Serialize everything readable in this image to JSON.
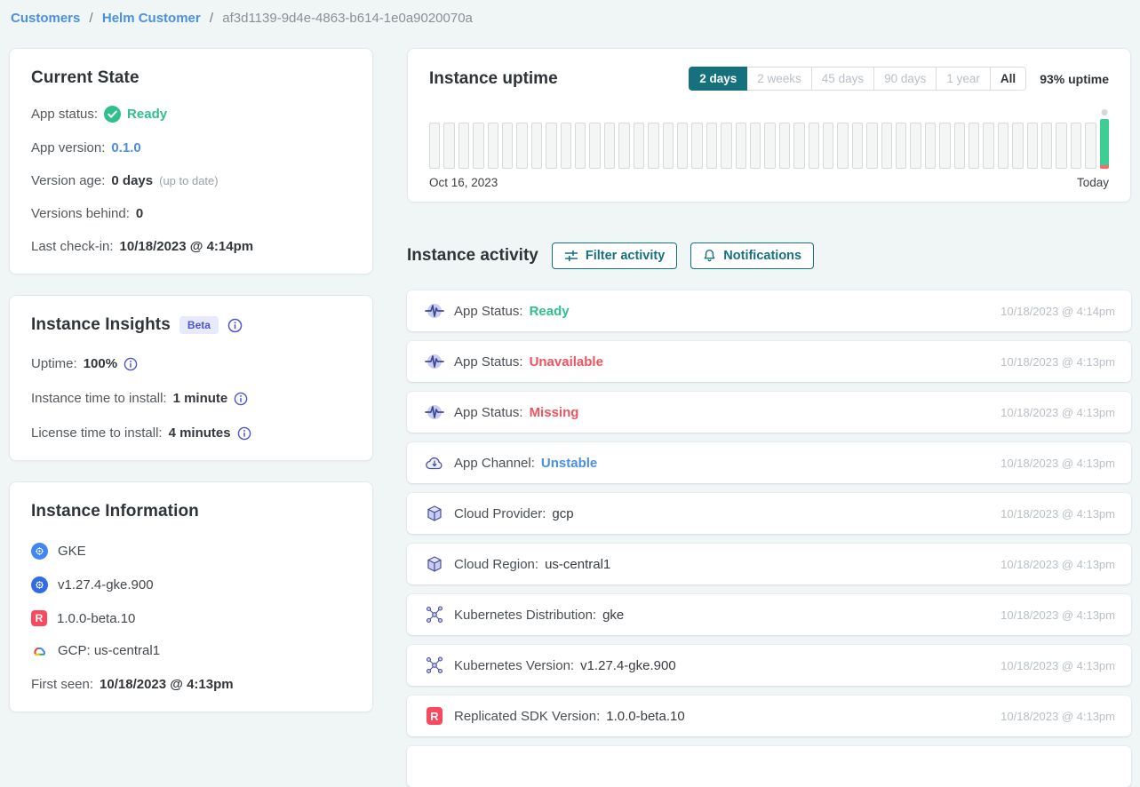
{
  "breadcrumb": {
    "links": [
      "Customers",
      "Helm Customer"
    ],
    "separator": "/",
    "current": "af3d1139-9d4e-4863-b614-1e0a9020070a"
  },
  "current_state": {
    "title": "Current State",
    "app_status": {
      "label": "App status:",
      "value": "Ready"
    },
    "app_version": {
      "label": "App version:",
      "value": "0.1.0"
    },
    "version_age": {
      "label": "Version age:",
      "value": "0 days",
      "note": "(up to date)"
    },
    "versions_behind": {
      "label": "Versions behind:",
      "value": "0"
    },
    "last_checkin": {
      "label": "Last check-in:",
      "value": "10/18/2023 @ 4:14pm"
    }
  },
  "instance_insights": {
    "title": "Instance Insights",
    "badge": "Beta",
    "uptime": {
      "label": "Uptime:",
      "value": "100%"
    },
    "instance_time_to_install": {
      "label": "Instance time to install:",
      "value": "1 minute"
    },
    "license_time_to_install": {
      "label": "License time to install:",
      "value": "4 minutes"
    }
  },
  "instance_information": {
    "title": "Instance Information",
    "rows": [
      {
        "icon": "gke-icon",
        "text": "GKE"
      },
      {
        "icon": "kubernetes-icon",
        "text": "v1.27.4-gke.900"
      },
      {
        "icon": "replicated-icon",
        "text": "1.0.0-beta.10"
      },
      {
        "icon": "gcp-icon",
        "text": "GCP: us-central1"
      }
    ],
    "first_seen": {
      "label": "First seen:",
      "value": "10/18/2023 @ 4:13pm"
    }
  },
  "uptime_card": {
    "title": "Instance uptime",
    "ranges": [
      {
        "label": "2 days",
        "selected": true,
        "muted": false
      },
      {
        "label": "2 weeks",
        "selected": false,
        "muted": true
      },
      {
        "label": "45 days",
        "selected": false,
        "muted": true
      },
      {
        "label": "90 days",
        "selected": false,
        "muted": true
      },
      {
        "label": "1 year",
        "selected": false,
        "muted": true
      },
      {
        "label": "All",
        "selected": false,
        "muted": false
      }
    ],
    "uptime_summary": "93% uptime"
  },
  "chart_data": {
    "type": "bar",
    "title": "Instance uptime",
    "x_start_label": "Oct 16, 2023",
    "x_end_label": "Today",
    "uptime_pct": 93,
    "no_data_bars": 46,
    "final_bar": {
      "up_pct": 92,
      "down_pct": 8
    },
    "legend": "none",
    "colors": {
      "no_data_fill": "#f4f5f5",
      "no_data_border": "#d7d9da",
      "up": "#3ecd92",
      "down": "#f56a6a"
    }
  },
  "activity": {
    "title": "Instance activity",
    "filter_button": "Filter activity",
    "notifications_button": "Notifications",
    "rows": [
      {
        "icon": "pulse-icon",
        "label": "App Status:",
        "value": "Ready",
        "value_style": "success",
        "timestamp": "10/18/2023 @ 4:14pm"
      },
      {
        "icon": "pulse-icon",
        "label": "App Status:",
        "value": "Unavailable",
        "value_style": "danger",
        "timestamp": "10/18/2023 @ 4:13pm"
      },
      {
        "icon": "pulse-icon",
        "label": "App Status:",
        "value": "Missing",
        "value_style": "danger",
        "timestamp": "10/18/2023 @ 4:13pm"
      },
      {
        "icon": "cloud-download-icon",
        "label": "App Channel:",
        "value": "Unstable",
        "value_style": "link",
        "timestamp": "10/18/2023 @ 4:13pm"
      },
      {
        "icon": "package-icon",
        "label": "Cloud Provider:",
        "value": "gcp",
        "value_style": "plain",
        "timestamp": "10/18/2023 @ 4:13pm"
      },
      {
        "icon": "package-icon",
        "label": "Cloud Region:",
        "value": "us-central1",
        "value_style": "plain",
        "timestamp": "10/18/2023 @ 4:13pm"
      },
      {
        "icon": "kubernetes-nodes-icon",
        "label": "Kubernetes Distribution:",
        "value": "gke",
        "value_style": "plain",
        "timestamp": "10/18/2023 @ 4:13pm"
      },
      {
        "icon": "kubernetes-nodes-icon",
        "label": "Kubernetes Version:",
        "value": "v1.27.4-gke.900",
        "value_style": "plain",
        "timestamp": "10/18/2023 @ 4:13pm"
      },
      {
        "icon": "replicated-icon",
        "label": "Replicated SDK Version:",
        "value": "1.0.0-beta.10",
        "value_style": "plain",
        "timestamp": "10/18/2023 @ 4:13pm"
      }
    ]
  },
  "icons": {
    "replicated_glyph": "R"
  },
  "colors": {
    "accent_teal": "#16717f",
    "link_blue": "#4a90e2",
    "success_green": "#2fc08c",
    "danger_red": "#f0525f",
    "replicated_red": "#f9495e",
    "kubernetes_blue": "#326ce5",
    "gke_blue": "#4285f4",
    "badge_text": "#4a55cf",
    "badge_bg": "#e7e9fc",
    "page_bg": "#f0f5f6"
  }
}
